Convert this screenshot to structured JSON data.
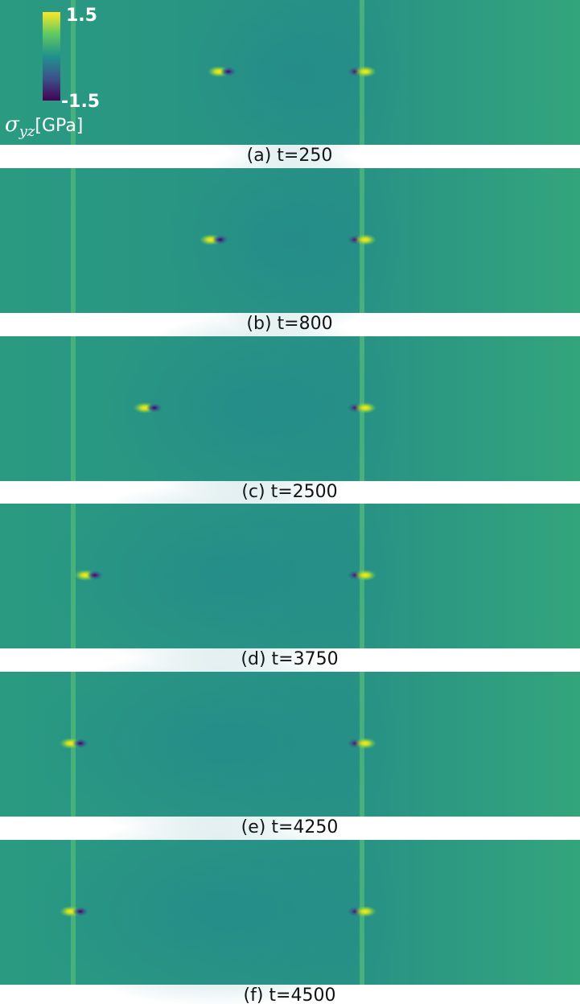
{
  "colorbar": {
    "max_label": "1.5",
    "min_label": "-1.5",
    "label_symbol": "σ",
    "label_subscript": "yz",
    "label_unit": "[GPa]"
  },
  "panels": [
    {
      "caption": "(a) t=250"
    },
    {
      "caption": "(b) t=800"
    },
    {
      "caption": "(c) t=2500"
    },
    {
      "caption": "(d) t=3750"
    },
    {
      "caption": "(e) t=4250"
    },
    {
      "caption": "(f) t=4500"
    }
  ]
}
